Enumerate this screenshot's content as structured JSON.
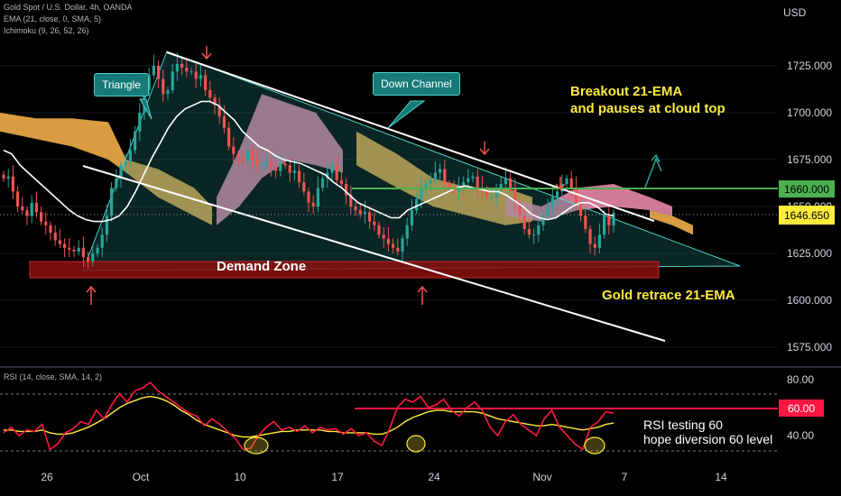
{
  "header": {
    "symbol": "Gold Spot / U.S. Dollar, 4h, OANDA",
    "ema": "EMA (21, close, 0, SMA, 5)",
    "ichimoku": "Ichimoku (9, 26, 52, 26)",
    "rsi": "RSI (14, close, SMA, 14, 2)",
    "currency": "USD"
  },
  "annotations": {
    "triangle": "Triangle",
    "down_channel": "Down Channel",
    "breakout_line1": "Breakout 21-EMA",
    "breakout_line2": "and pauses at cloud top",
    "demand_zone": "Demand Zone",
    "gold_retrace": "Gold retrace 21-EMA",
    "rsi_line1": "RSI testing 60",
    "rsi_line2": "hope diversion 60 level"
  },
  "colors": {
    "bull": "#26a69a",
    "bear": "#ef5350",
    "ema": "#ffffff",
    "cloud_bull": "#ffb74d",
    "cloud_bear": "#f48fb1",
    "resistance": "#4caf50",
    "price_tag": "#ffeb3b",
    "rsi_line": "#ff1744",
    "rsi_ma": "#ffeb3b"
  },
  "chart_data": {
    "type": "candlestick",
    "instrument": "Gold Spot / U.S. Dollar",
    "timeframe": "4h",
    "y_axis": {
      "ticks": [
        1725,
        1700,
        1675,
        1650,
        1625,
        1600,
        1575
      ],
      "tick_labels": [
        "1725.000",
        "1700.000",
        "1675.000",
        "1650.000",
        "1625.000",
        "1600.000",
        "1575.000"
      ],
      "range": [
        1560,
        1740
      ]
    },
    "x_axis": {
      "tick_labels": [
        "26",
        "Oct",
        "10",
        "17",
        "24",
        "Nov",
        "7",
        "14"
      ]
    },
    "price_labels": [
      {
        "label": "1660.000",
        "value": 1660,
        "kind": "resistance"
      },
      {
        "label": "1646.650",
        "value": 1646.65,
        "kind": "last"
      }
    ],
    "close_series": [
      1665,
      1666,
      1658,
      1650,
      1648,
      1645,
      1652,
      1647,
      1642,
      1640,
      1636,
      1632,
      1630,
      1628,
      1627,
      1626,
      1628,
      1623,
      1621,
      1625,
      1628,
      1635,
      1645,
      1660,
      1665,
      1672,
      1674,
      1680,
      1690,
      1700,
      1712,
      1720,
      1725,
      1718,
      1710,
      1712,
      1722,
      1726,
      1724,
      1722,
      1722,
      1718,
      1720,
      1712,
      1708,
      1704,
      1698,
      1692,
      1682,
      1678,
      1676,
      1674,
      1680,
      1675,
      1672,
      1672,
      1674,
      1671,
      1669,
      1673,
      1672,
      1668,
      1669,
      1663,
      1658,
      1652,
      1650,
      1660,
      1665,
      1668,
      1672,
      1664,
      1662,
      1656,
      1650,
      1648,
      1646,
      1647,
      1642,
      1640,
      1635,
      1633,
      1630,
      1628,
      1626,
      1633,
      1640,
      1648,
      1654,
      1660,
      1662,
      1664,
      1668,
      1670,
      1662,
      1660,
      1658,
      1660,
      1663,
      1665,
      1666,
      1660,
      1658,
      1655,
      1655,
      1660,
      1662,
      1665,
      1660,
      1652,
      1645,
      1638,
      1635,
      1635,
      1640,
      1645,
      1650,
      1655,
      1658,
      1662,
      1665,
      1660,
      1652,
      1645,
      1638,
      1630,
      1628,
      1635,
      1645,
      1640,
      1646.65
    ],
    "ema_21": [
      1680,
      1678,
      1672,
      1668,
      1664,
      1660,
      1656,
      1652,
      1648,
      1645,
      1643,
      1642,
      1642,
      1643,
      1645,
      1650,
      1658,
      1667,
      1676,
      1684,
      1692,
      1698,
      1702,
      1704,
      1706,
      1706,
      1704,
      1700,
      1696,
      1690,
      1686,
      1682,
      1680,
      1677,
      1675,
      1674,
      1673,
      1671,
      1669,
      1667,
      1663,
      1660,
      1656,
      1652,
      1650,
      1648,
      1646,
      1644,
      1644,
      1648,
      1650,
      1652,
      1654,
      1656,
      1658,
      1660,
      1661,
      1660,
      1659,
      1658,
      1658,
      1656,
      1653,
      1650,
      1646,
      1644,
      1643,
      1644,
      1647,
      1650,
      1652,
      1652,
      1650,
      1646,
      1645
    ],
    "rsi": {
      "ticks": [
        80,
        60,
        40
      ],
      "tick_labels": [
        "80.00",
        "60.00",
        "40.00"
      ],
      "range": [
        20,
        85
      ],
      "marked_level": {
        "label": "60.00",
        "value": 60
      },
      "rsi_values": [
        42,
        46,
        40,
        44,
        43,
        48,
        30,
        34,
        42,
        45,
        50,
        48,
        58,
        52,
        62,
        70,
        64,
        72,
        74,
        78,
        72,
        68,
        64,
        60,
        56,
        54,
        47,
        52,
        48,
        43,
        38,
        30,
        31,
        40,
        46,
        50,
        44,
        46,
        43,
        47,
        42,
        46,
        44,
        45,
        41,
        45,
        40,
        42,
        36,
        33,
        45,
        60,
        66,
        64,
        68,
        60,
        62,
        66,
        58,
        54,
        60,
        64,
        58,
        46,
        40,
        50,
        55,
        48,
        44,
        40,
        52,
        58,
        46,
        40,
        34,
        30,
        46,
        50,
        57,
        56
      ],
      "ma_values": [
        44,
        44,
        43,
        43,
        43,
        44,
        42,
        41,
        41,
        42,
        44,
        46,
        49,
        52,
        56,
        60,
        63,
        65,
        67,
        68,
        67,
        65,
        62,
        58,
        55,
        51,
        48,
        46,
        44,
        42,
        40,
        39,
        39,
        40,
        41,
        42,
        43,
        43,
        44,
        44,
        44,
        44,
        43,
        43,
        42,
        42,
        42,
        42,
        41,
        41,
        43,
        46,
        50,
        53,
        55,
        57,
        58,
        58,
        57,
        57,
        57,
        57,
        56,
        54,
        52,
        51,
        50,
        49,
        48,
        47,
        47,
        48,
        47,
        46,
        45,
        44,
        45,
        46,
        48,
        49
      ]
    }
  }
}
